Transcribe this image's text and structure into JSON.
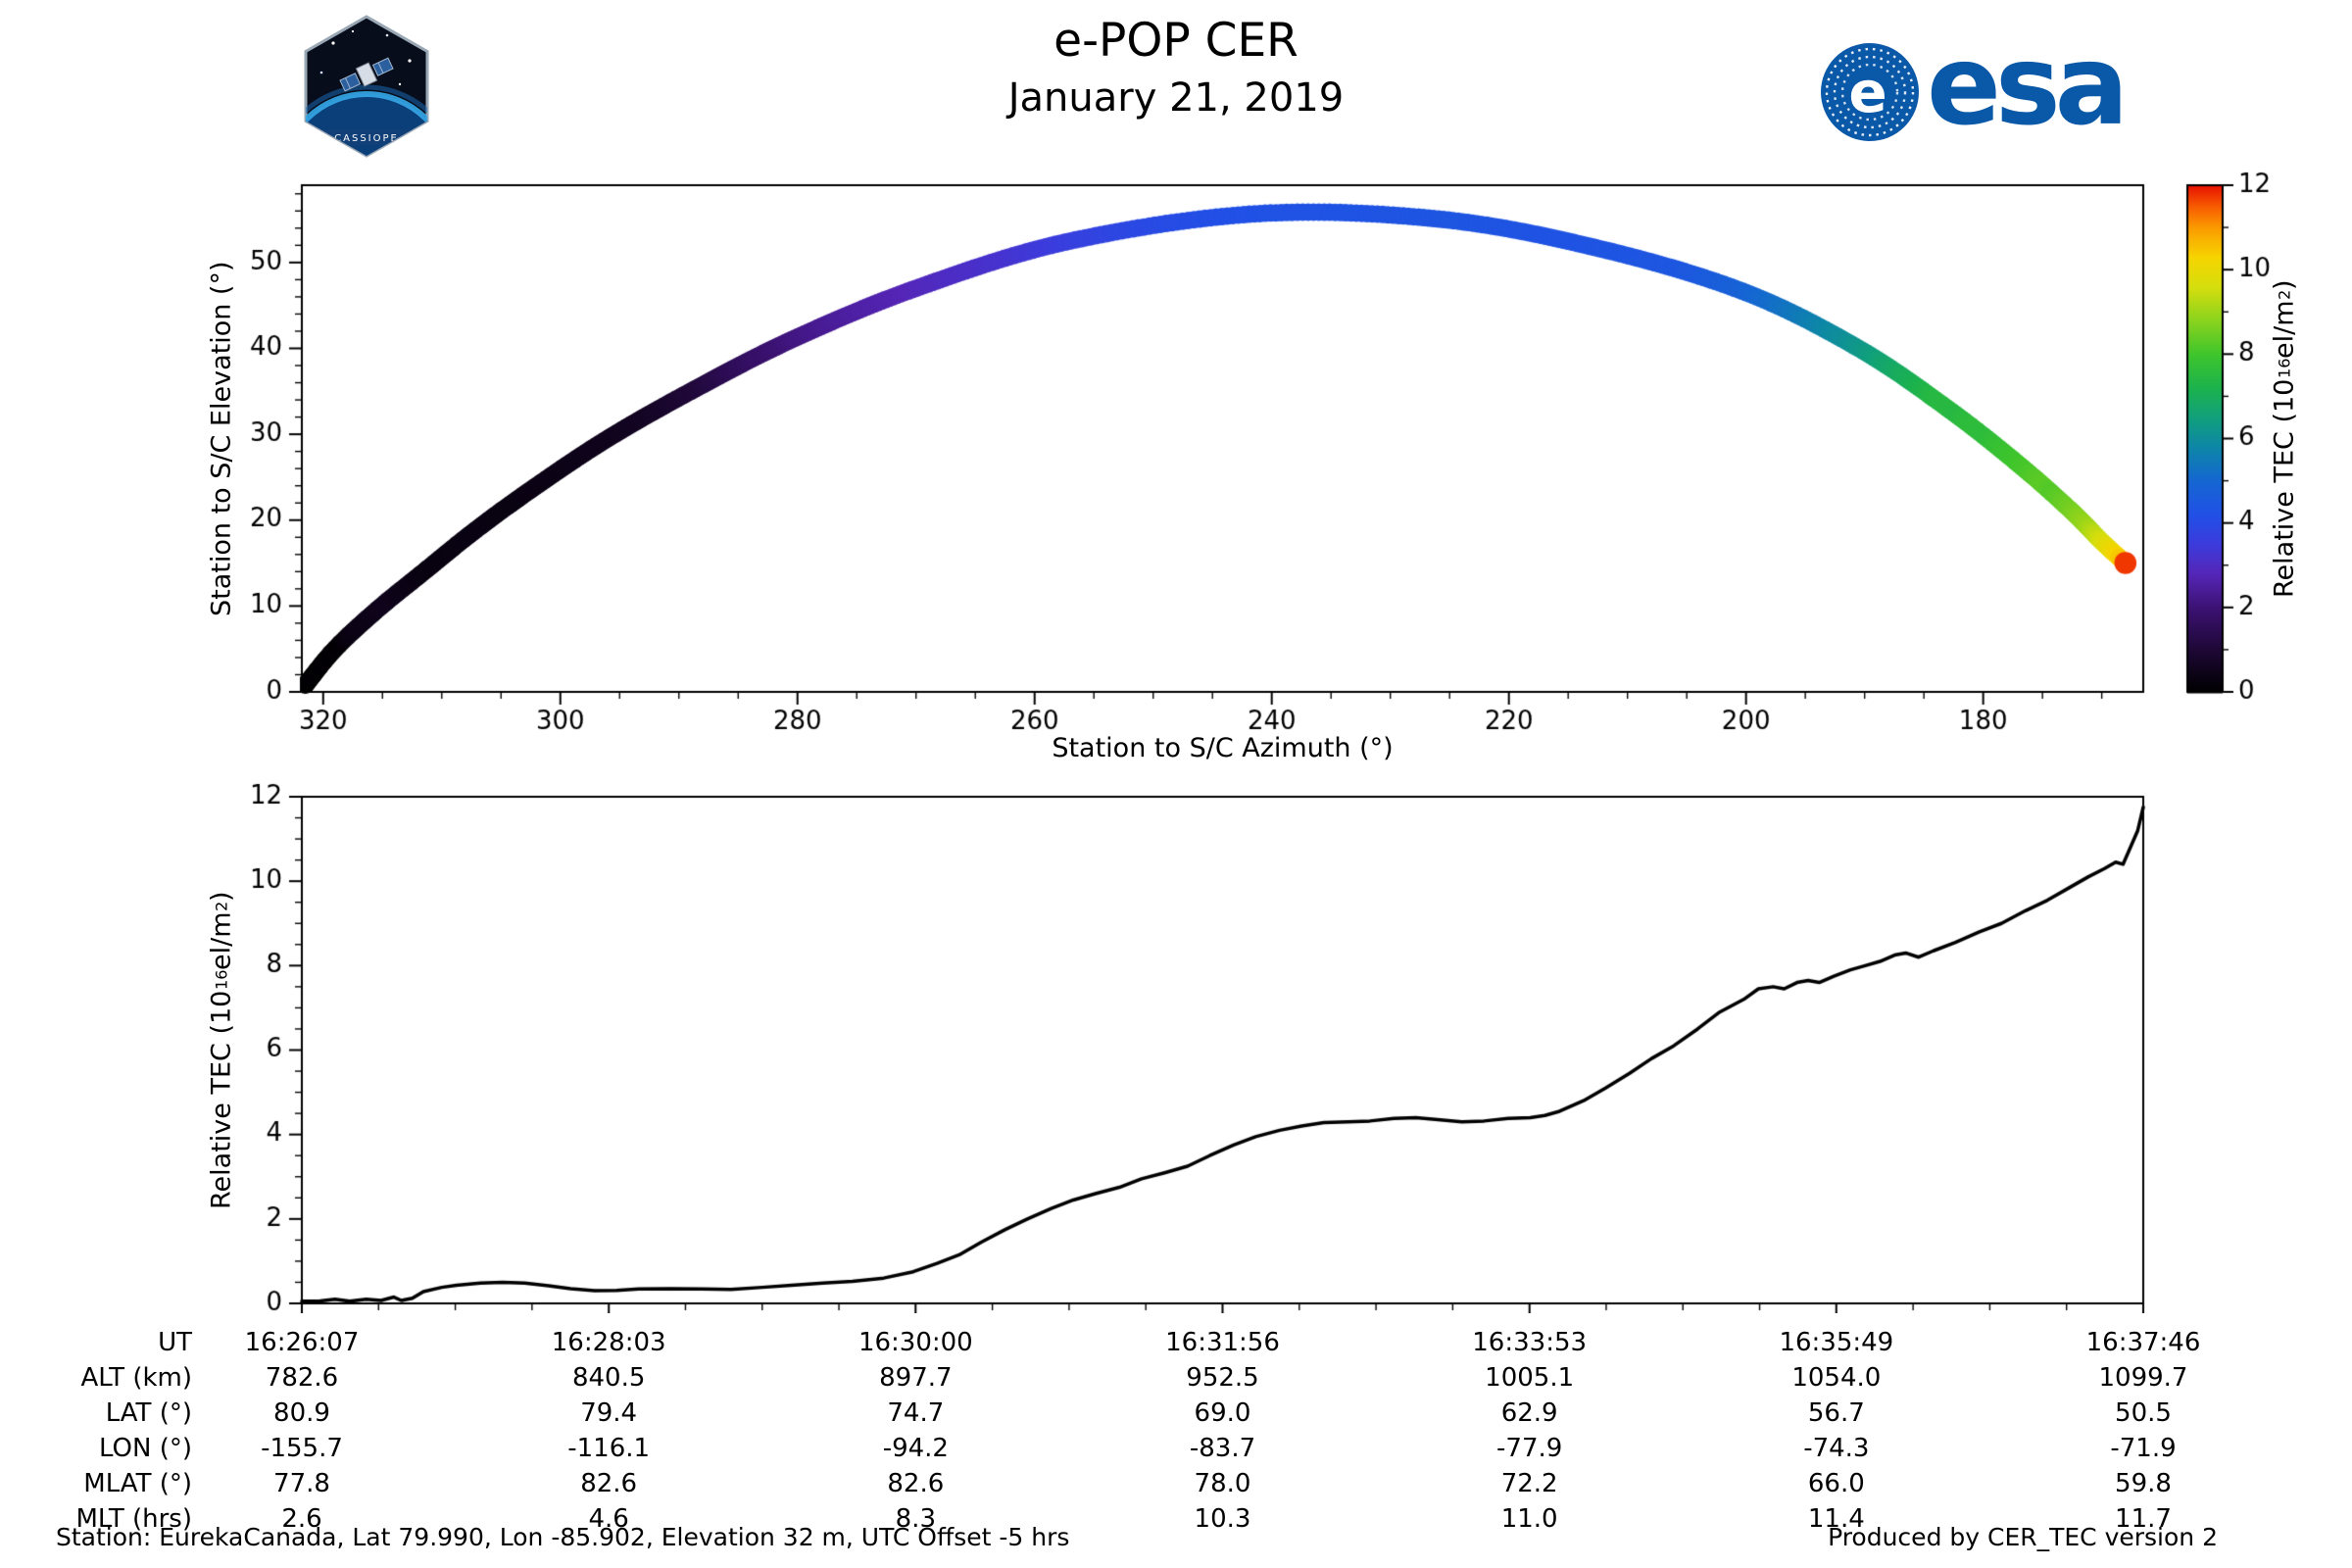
{
  "header": {
    "title": "e-POP CER",
    "date": "January 21, 2019",
    "esa_logo_text": "esa",
    "cassiope_label": "CASSIOPE"
  },
  "colors": {
    "esa_blue": "#0a58a8",
    "line": "#000000"
  },
  "chart_data": [
    {
      "type": "scatter",
      "xlabel": "Station to S/C Azimuth (°)",
      "ylabel": "Station to S/C Elevation (°)",
      "xlim": [
        321.8,
        166.5
      ],
      "ylim": [
        0,
        59
      ],
      "xticks": [
        320,
        300,
        280,
        260,
        240,
        220,
        200,
        180
      ],
      "yticks": [
        0,
        10,
        20,
        30,
        40,
        50
      ],
      "track": {
        "t": [
          0,
          0.05,
          0.1,
          0.15,
          0.2,
          0.25,
          0.3,
          0.35,
          0.4,
          0.45,
          0.5,
          0.55,
          0.6,
          0.65,
          0.7,
          0.75,
          0.8,
          0.85,
          0.9,
          0.95,
          1.0
        ],
        "azimuth": [
          321.5,
          319,
          315.5,
          311.5,
          307,
          302,
          296,
          289,
          280.5,
          270,
          257,
          241,
          225.5,
          212,
          200,
          190.5,
          183,
          177,
          172.5,
          170,
          168
        ],
        "elevation": [
          0.8,
          5,
          9.5,
          14,
          19,
          24,
          29.5,
          35,
          41,
          47,
          52.5,
          55.7,
          55,
          51.5,
          46.5,
          40,
          33,
          26.5,
          21,
          17.5,
          15
        ],
        "color_by": "relative_tec_from_timeseries"
      },
      "colorbar": {
        "label": "Relative TEC (10^{16} el/m^{2})",
        "range": [
          0,
          12
        ],
        "ticks": [
          0,
          2,
          4,
          6,
          8,
          10,
          12
        ],
        "stops": [
          [
            0,
            "#000000"
          ],
          [
            1,
            "#1e0836"
          ],
          [
            2,
            "#3c1273"
          ],
          [
            2.8,
            "#5526b8"
          ],
          [
            3.5,
            "#3d3bdc"
          ],
          [
            4.2,
            "#2150e6"
          ],
          [
            5,
            "#1567d2"
          ],
          [
            5.8,
            "#0e86a8"
          ],
          [
            6.5,
            "#11a07c"
          ],
          [
            7.2,
            "#1cb24e"
          ],
          [
            8,
            "#3fc52c"
          ],
          [
            8.8,
            "#8ad31e"
          ],
          [
            9.6,
            "#d6de0e"
          ],
          [
            10.3,
            "#f6d500"
          ],
          [
            11,
            "#fb9b00"
          ],
          [
            11.5,
            "#f85c00"
          ],
          [
            12,
            "#e81200"
          ]
        ]
      }
    },
    {
      "type": "line",
      "ylabel": "Relative TEC (10^{16} el/m^{2})",
      "ylim": [
        0,
        12
      ],
      "yticks": [
        0,
        2,
        4,
        6,
        8,
        10,
        12
      ],
      "xticks_t": [
        0,
        0.1667,
        0.3333,
        0.5,
        0.6667,
        0.8333,
        1
      ],
      "xtick_labels": [
        "16:26:07",
        "16:28:03",
        "16:30:00",
        "16:31:56",
        "16:33:53",
        "16:35:49",
        "16:37:46"
      ],
      "x": [
        0,
        0.01,
        0.018,
        0.026,
        0.035,
        0.043,
        0.05,
        0.054,
        0.06,
        0.066,
        0.076,
        0.084,
        0.097,
        0.109,
        0.121,
        0.134,
        0.146,
        0.159,
        0.171,
        0.183,
        0.2,
        0.217,
        0.233,
        0.25,
        0.266,
        0.283,
        0.299,
        0.316,
        0.332,
        0.345,
        0.357,
        0.369,
        0.382,
        0.394,
        0.407,
        0.419,
        0.431,
        0.444,
        0.456,
        0.469,
        0.481,
        0.493,
        0.506,
        0.518,
        0.531,
        0.543,
        0.555,
        0.568,
        0.58,
        0.593,
        0.605,
        0.617,
        0.63,
        0.642,
        0.655,
        0.667,
        0.675,
        0.683,
        0.696,
        0.708,
        0.721,
        0.733,
        0.745,
        0.758,
        0.77,
        0.783,
        0.791,
        0.799,
        0.805,
        0.812,
        0.818,
        0.824,
        0.832,
        0.841,
        0.849,
        0.857,
        0.865,
        0.871,
        0.878,
        0.886,
        0.898,
        0.911,
        0.923,
        0.936,
        0.948,
        0.96,
        0.97,
        0.979,
        0.985,
        0.989,
        0.993,
        0.997,
        1.0
      ],
      "y": [
        0.05,
        0.06,
        0.1,
        0.05,
        0.1,
        0.07,
        0.15,
        0.07,
        0.12,
        0.28,
        0.38,
        0.43,
        0.48,
        0.5,
        0.48,
        0.42,
        0.35,
        0.3,
        0.31,
        0.34,
        0.35,
        0.34,
        0.33,
        0.38,
        0.43,
        0.48,
        0.52,
        0.6,
        0.75,
        0.95,
        1.15,
        1.45,
        1.75,
        2.0,
        2.25,
        2.45,
        2.6,
        2.75,
        2.95,
        3.1,
        3.25,
        3.5,
        3.75,
        3.95,
        4.1,
        4.2,
        4.28,
        4.3,
        4.32,
        4.38,
        4.4,
        4.35,
        4.3,
        4.32,
        4.38,
        4.4,
        4.45,
        4.55,
        4.8,
        5.1,
        5.45,
        5.8,
        6.1,
        6.5,
        6.9,
        7.2,
        7.45,
        7.5,
        7.45,
        7.6,
        7.65,
        7.6,
        7.75,
        7.9,
        8.0,
        8.1,
        8.25,
        8.3,
        8.2,
        8.35,
        8.55,
        8.8,
        9.0,
        9.3,
        9.55,
        9.85,
        10.1,
        10.3,
        10.45,
        10.4,
        10.8,
        11.2,
        11.75
      ]
    }
  ],
  "table": {
    "rows": [
      {
        "label": "UT",
        "values": [
          "16:26:07",
          "16:28:03",
          "16:30:00",
          "16:31:56",
          "16:33:53",
          "16:35:49",
          "16:37:46"
        ]
      },
      {
        "label": "ALT (km)",
        "values": [
          "782.6",
          "840.5",
          "897.7",
          "952.5",
          "1005.1",
          "1054.0",
          "1099.7"
        ]
      },
      {
        "label": "LAT (°)",
        "values": [
          "80.9",
          "79.4",
          "74.7",
          "69.0",
          "62.9",
          "56.7",
          "50.5"
        ]
      },
      {
        "label": "LON (°)",
        "values": [
          "-155.7",
          "-116.1",
          "-94.2",
          "-83.7",
          "-77.9",
          "-74.3",
          "-71.9"
        ]
      },
      {
        "label": "MLAT (°)",
        "values": [
          "77.8",
          "82.6",
          "82.6",
          "78.0",
          "72.2",
          "66.0",
          "59.8"
        ]
      },
      {
        "label": "MLT (hrs)",
        "values": [
          "2.6",
          "4.6",
          "8.3",
          "10.3",
          "11.0",
          "11.4",
          "11.7"
        ]
      }
    ]
  },
  "footer": {
    "station_info": "Station: EurekaCanada, Lat 79.990, Lon -85.902, Elevation 32 m, UTC Offset -5 hrs",
    "produced_by": "Produced by CER_TEC version 2"
  }
}
